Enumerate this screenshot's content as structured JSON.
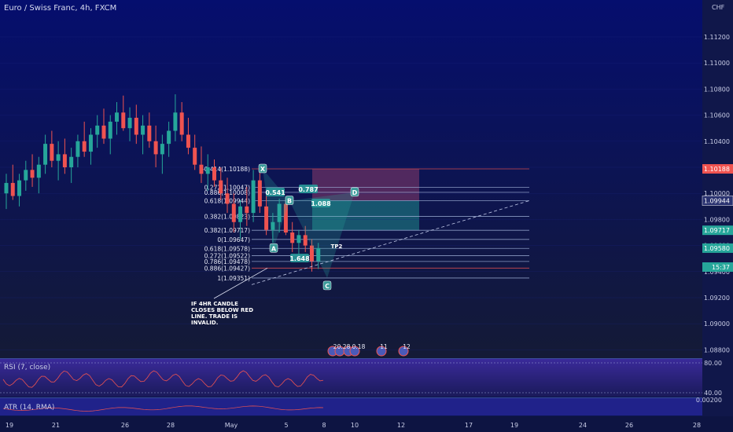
{
  "header": {
    "symbol": "Euro / Swiss Franc, 4h, FXCM"
  },
  "colors": {
    "up": "#26a69a",
    "down": "#ef5350",
    "bg_top": "#050e6e",
    "bg_bottom": "#141a36",
    "fib": "#9fb0d8",
    "teal": "#26a69a",
    "red_line": "#ef5350"
  },
  "chart_data": {
    "type": "candlestick",
    "currency": "CHF",
    "ylim": [
      1.0862,
      1.114
    ],
    "y_ticks": [
      "1.11200",
      "1.11000",
      "1.10800",
      "1.10600",
      "1.10400",
      "1.10200",
      "1.10000",
      "1.09800",
      "1.09600",
      "1.09400",
      "1.09200",
      "1.09000",
      "1.08800"
    ],
    "x_ticks": [
      "19",
      "21",
      "26",
      "28",
      "May",
      "5",
      "8",
      "10",
      "12",
      "17",
      "19",
      "24",
      "26",
      "28"
    ],
    "ohlc_shape": [
      [
        1.1,
        1.1015,
        1.0988,
        1.1008
      ],
      [
        1.1008,
        1.1022,
        1.0995,
        1.0998
      ],
      [
        1.0998,
        1.1015,
        1.099,
        1.101
      ],
      [
        1.101,
        1.1025,
        1.1002,
        1.1018
      ],
      [
        1.1018,
        1.103,
        1.1005,
        1.1012
      ],
      [
        1.1012,
        1.1028,
        1.1,
        1.1022
      ],
      [
        1.1022,
        1.1045,
        1.1015,
        1.1038
      ],
      [
        1.1038,
        1.1048,
        1.102,
        1.1025
      ],
      [
        1.1025,
        1.104,
        1.101,
        1.103
      ],
      [
        1.103,
        1.1042,
        1.1015,
        1.102
      ],
      [
        1.102,
        1.1035,
        1.1008,
        1.1028
      ],
      [
        1.1028,
        1.1045,
        1.102,
        1.104
      ],
      [
        1.104,
        1.1055,
        1.1028,
        1.1032
      ],
      [
        1.1032,
        1.105,
        1.1022,
        1.1045
      ],
      [
        1.1045,
        1.106,
        1.1035,
        1.1052
      ],
      [
        1.1052,
        1.1065,
        1.1038,
        1.1042
      ],
      [
        1.1042,
        1.106,
        1.103,
        1.1055
      ],
      [
        1.1055,
        1.107,
        1.1045,
        1.1062
      ],
      [
        1.1062,
        1.1075,
        1.1048,
        1.105
      ],
      [
        1.105,
        1.1066,
        1.104,
        1.1058
      ],
      [
        1.1058,
        1.1068,
        1.1038,
        1.1045
      ],
      [
        1.1045,
        1.106,
        1.103,
        1.1052
      ],
      [
        1.1052,
        1.1062,
        1.1035,
        1.104
      ],
      [
        1.104,
        1.1052,
        1.102,
        1.103
      ],
      [
        1.103,
        1.1045,
        1.1015,
        1.1038
      ],
      [
        1.1038,
        1.1055,
        1.1028,
        1.1048
      ],
      [
        1.1048,
        1.1076,
        1.104,
        1.1062
      ],
      [
        1.1062,
        1.107,
        1.104,
        1.1045
      ],
      [
        1.1045,
        1.1058,
        1.103,
        1.1035
      ],
      [
        1.1035,
        1.1045,
        1.1018,
        1.1022
      ],
      [
        1.1022,
        1.1036,
        1.1008,
        1.1015
      ],
      [
        1.1015,
        1.103,
        1.1002,
        1.102
      ],
      [
        1.102,
        1.1026,
        1.1005,
        1.101
      ],
      [
        1.101,
        1.102,
        1.0995,
        1.1
      ],
      [
        1.1,
        1.1012,
        1.0985,
        1.0992
      ],
      [
        1.0992,
        1.1,
        1.097,
        1.0978
      ],
      [
        1.0978,
        1.0995,
        1.0965,
        1.099
      ],
      [
        1.099,
        1.1005,
        1.0975,
        1.0985
      ],
      [
        1.0985,
        1.1018,
        1.0978,
        1.101
      ],
      [
        1.101,
        1.1016,
        1.0985,
        1.099
      ],
      [
        1.099,
        1.0998,
        1.0968,
        1.0972
      ],
      [
        1.0972,
        1.0985,
        1.0962,
        1.0978
      ],
      [
        1.0978,
        1.0996,
        1.097,
        1.0992
      ],
      [
        1.0992,
        1.0994,
        1.0968,
        1.097
      ],
      [
        1.097,
        1.0978,
        1.0955,
        1.0962
      ],
      [
        1.0962,
        1.0972,
        1.0952,
        1.0968
      ],
      [
        1.0968,
        1.0975,
        1.0955,
        1.096
      ],
      [
        1.096,
        1.0965,
        1.094,
        1.0948
      ],
      [
        1.0948,
        1.0962,
        1.0942,
        1.0958
      ]
    ],
    "fib_levels": [
      {
        "label": "-0.414(1.10188)",
        "price": 1.10188,
        "color": "#ef5350"
      },
      {
        "label": "0.272(1.10047)",
        "price": 1.10047,
        "color": "#9fb0d8"
      },
      {
        "label": "0.886(1.10008)",
        "price": 1.10008,
        "color": "#9fb0d8"
      },
      {
        "label": "0.618(1.09944)",
        "price": 1.09944,
        "color": "#9fb0d8"
      },
      {
        "label": "0.382(1.09823)",
        "price": 1.09823,
        "color": "#9fb0d8"
      },
      {
        "label": "0.382(1.09717)",
        "price": 1.09717,
        "color": "#9fb0d8"
      },
      {
        "label": "0(1.09647)",
        "price": 1.09647,
        "color": "#9fb0d8"
      },
      {
        "label": "0.618(1.09578)",
        "price": 1.09578,
        "color": "#9fb0d8"
      },
      {
        "label": "0.272(1.09522)",
        "price": 1.09522,
        "color": "#9fb0d8"
      },
      {
        "label": "0.786(1.09478)",
        "price": 1.09478,
        "color": "#9fb0d8"
      },
      {
        "label": "0.886(1.09427)",
        "price": 1.09427,
        "color": "#ef5350"
      },
      {
        "label": "1(1.09351)",
        "price": 1.09351,
        "color": "#9fb0d8"
      }
    ],
    "points": [
      {
        "label": "X",
        "price": 1.10188
      },
      {
        "label": "A",
        "price": 1.09578
      },
      {
        "label": "B",
        "price": 1.09944
      },
      {
        "label": "C",
        "price": 1.09351
      },
      {
        "label": "D",
        "price": 1.10008
      }
    ],
    "ratios": [
      "0.541",
      "0.787",
      "1.088",
      "1.648"
    ],
    "tp_label": "TP2",
    "note": [
      "IF 4HR CANDLE",
      "CLOSES BELOW RED",
      "LINE. TRADE IS",
      "INVALID."
    ],
    "price_tags": [
      {
        "text": "1.10188",
        "price": 1.10188,
        "color": "#ef5350"
      },
      {
        "text": "1.09944",
        "price": 1.09944,
        "color": "#d8dcf0"
      },
      {
        "text": "1.09717",
        "price": 1.09717,
        "color": "#26a69a"
      },
      {
        "text": "1.09580",
        "price": 1.0958,
        "color": "#26a69a"
      },
      {
        "text": "15:37",
        "price": 1.0952,
        "color": "#26a69a"
      }
    ],
    "events": [
      "2",
      "0.28",
      "0.18",
      "11",
      "12"
    ],
    "rsi": {
      "label": "RSI (7, close)",
      "levels": [
        "80.00",
        "40.00"
      ]
    },
    "atr": {
      "label": "ATR (14, RMA)",
      "value": "0.00200"
    }
  }
}
